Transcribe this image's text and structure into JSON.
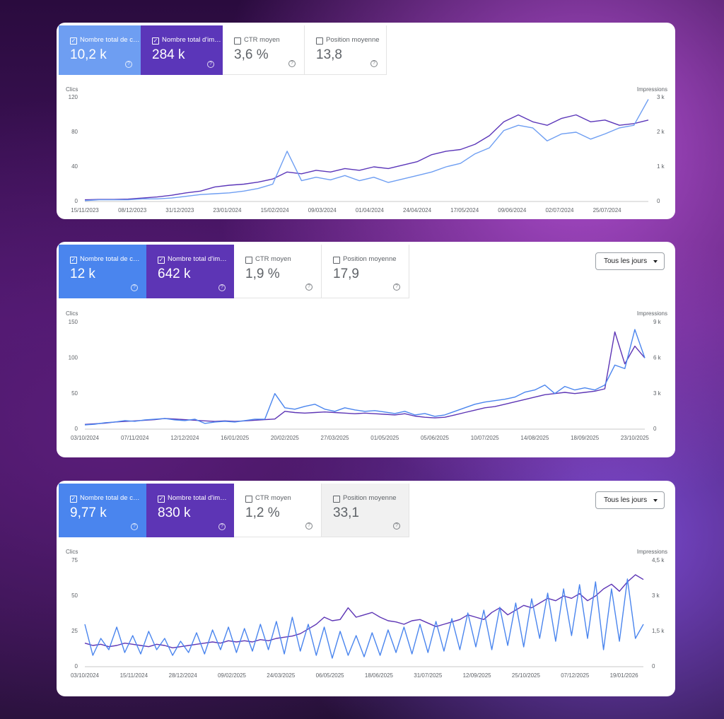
{
  "chart_data": [
    {
      "type": "line",
      "cards": [
        {
          "label": "Nombre total de c…",
          "value": "10,2 k",
          "checked": true
        },
        {
          "label": "Nombre total d'im…",
          "value": "284 k",
          "checked": true
        },
        {
          "label": "CTR moyen",
          "value": "3,6 %",
          "checked": false
        },
        {
          "label": "Position moyenne",
          "value": "13,8",
          "checked": false
        }
      ],
      "y_label": "Clics",
      "y2_label": "Impressions",
      "x": [
        "15/11/2023",
        "22/11/2023",
        "29/11/2023",
        "06/12/2023",
        "13/12/2023",
        "20/12/2023",
        "27/12/2023",
        "03/01/2024",
        "10/01/2024",
        "17/01/2024",
        "24/01/2024",
        "31/01/2024",
        "07/02/2024",
        "14/02/2024",
        "21/02/2024",
        "28/02/2024",
        "06/03/2024",
        "13/03/2024",
        "20/03/2024",
        "27/03/2024",
        "03/04/2024",
        "10/04/2024",
        "17/04/2024",
        "24/04/2024",
        "01/05/2024",
        "08/05/2024",
        "15/05/2024",
        "22/05/2024",
        "29/05/2024",
        "05/06/2024",
        "12/06/2024",
        "19/06/2024",
        "26/06/2024",
        "03/07/2024",
        "10/07/2024",
        "17/07/2024",
        "24/07/2024",
        "31/07/2024",
        "07/08/2024",
        "14/08/2024"
      ],
      "xlim": [
        "15/11/2023",
        "14/08/2024"
      ],
      "xticks": [
        "15/11/2023",
        "08/12/2023",
        "31/12/2023",
        "23/01/2024",
        "15/02/2024",
        "09/03/2024",
        "01/04/2024",
        "24/04/2024",
        "17/05/2024",
        "09/06/2024",
        "02/07/2024",
        "25/07/2024"
      ],
      "ylim": [
        0,
        120
      ],
      "yticks": [
        0,
        40,
        80,
        120
      ],
      "y2lim": [
        0,
        3000
      ],
      "y2ticks": [
        0,
        {
          "value": 1000,
          "label": "1 k"
        },
        {
          "value": 2000,
          "label": "2 k"
        },
        {
          "value": 3000,
          "label": "3 k"
        }
      ],
      "series": [
        {
          "color": "#6e9ef2",
          "values": [
            1,
            2,
            2,
            2,
            3,
            3,
            4,
            6,
            8,
            9,
            10,
            12,
            15,
            20,
            58,
            24,
            28,
            25,
            30,
            24,
            28,
            22,
            26,
            30,
            34,
            40,
            44,
            55,
            62,
            82,
            88,
            85,
            70,
            78,
            80,
            72,
            78,
            85,
            88,
            118
          ]
        },
        {
          "color": "#5b36b9",
          "axis": "y2",
          "values": [
            50,
            60,
            60,
            70,
            100,
            130,
            180,
            250,
            300,
            420,
            470,
            500,
            560,
            650,
            850,
            800,
            900,
            850,
            950,
            900,
            1000,
            950,
            1050,
            1150,
            1350,
            1450,
            1500,
            1650,
            1900,
            2300,
            2500,
            2300,
            2200,
            2400,
            2500,
            2300,
            2350,
            2200,
            2250,
            2350
          ]
        }
      ]
    },
    {
      "type": "line",
      "cards": [
        {
          "label": "Nombre total de c…",
          "value": "12 k",
          "checked": true
        },
        {
          "label": "Nombre total d'im…",
          "value": "642 k",
          "checked": true
        },
        {
          "label": "CTR moyen",
          "value": "1,9 %",
          "checked": false
        },
        {
          "label": "Position moyenne",
          "value": "17,9",
          "checked": false
        }
      ],
      "frequency": "Tous les jours",
      "y_label": "Clics",
      "y2_label": "Impressions",
      "x": [
        "03/10/2024",
        "10/10/2024",
        "17/10/2024",
        "24/10/2024",
        "31/10/2024",
        "07/11/2024",
        "14/11/2024",
        "21/11/2024",
        "28/11/2024",
        "05/12/2024",
        "12/12/2024",
        "19/12/2024",
        "26/12/2024",
        "02/01/2025",
        "09/01/2025",
        "16/01/2025",
        "23/01/2025",
        "30/01/2025",
        "06/02/2025",
        "13/02/2025",
        "20/02/2025",
        "27/02/2025",
        "06/03/2025",
        "13/03/2025",
        "20/03/2025",
        "27/03/2025",
        "03/04/2025",
        "10/04/2025",
        "17/04/2025",
        "24/04/2025",
        "01/05/2025",
        "08/05/2025",
        "15/05/2025",
        "22/05/2025",
        "29/05/2025",
        "05/06/2025",
        "12/06/2025",
        "19/06/2025",
        "26/06/2025",
        "03/07/2025",
        "10/07/2025",
        "17/07/2025",
        "24/07/2025",
        "31/07/2025",
        "07/08/2025",
        "14/08/2025",
        "21/08/2025",
        "28/08/2025",
        "04/09/2025",
        "11/09/2025",
        "18/09/2025",
        "25/09/2025",
        "02/10/2025",
        "09/10/2025",
        "16/10/2025",
        "23/10/2025",
        "30/10/2025"
      ],
      "xlim": [
        "03/10/2024",
        "30/10/2025"
      ],
      "xticks": [
        "03/10/2024",
        "07/11/2024",
        "12/12/2024",
        "16/01/2025",
        "20/02/2025",
        "27/03/2025",
        "01/05/2025",
        "05/06/2025",
        "10/07/2025",
        "14/08/2025",
        "18/09/2025",
        "23/10/2025"
      ],
      "ylim": [
        0,
        150
      ],
      "yticks": [
        0,
        50,
        100,
        150
      ],
      "y2lim": [
        0,
        9000
      ],
      "y2ticks": [
        0,
        {
          "value": 3000,
          "label": "3 k"
        },
        {
          "value": 6000,
          "label": "6 k"
        },
        {
          "value": 9000,
          "label": "9 k"
        }
      ],
      "series": [
        {
          "color": "#4a85ee",
          "values": [
            6,
            7,
            9,
            10,
            12,
            11,
            13,
            14,
            15,
            13,
            12,
            14,
            8,
            10,
            11,
            10,
            12,
            14,
            14,
            50,
            30,
            28,
            32,
            35,
            28,
            25,
            30,
            27,
            25,
            26,
            24,
            22,
            25,
            20,
            22,
            18,
            20,
            25,
            30,
            35,
            38,
            40,
            42,
            45,
            52,
            55,
            62,
            50,
            60,
            55,
            58,
            55,
            62,
            90,
            85,
            140,
            100
          ]
        },
        {
          "color": "#5d35b5",
          "axis": "y2",
          "values": [
            400,
            450,
            500,
            600,
            650,
            700,
            750,
            800,
            900,
            850,
            800,
            750,
            700,
            650,
            700,
            650,
            700,
            750,
            800,
            850,
            1500,
            1400,
            1350,
            1400,
            1450,
            1400,
            1350,
            1300,
            1350,
            1300,
            1250,
            1200,
            1300,
            1100,
            1000,
            950,
            1000,
            1200,
            1400,
            1600,
            1800,
            1900,
            2100,
            2300,
            2500,
            2700,
            2900,
            3000,
            3100,
            3000,
            3100,
            3200,
            3400,
            8200,
            5500,
            7000,
            6000
          ]
        }
      ]
    },
    {
      "type": "line",
      "cards": [
        {
          "label": "Nombre total de c…",
          "value": "9,77 k",
          "checked": true
        },
        {
          "label": "Nombre total d'im…",
          "value": "830 k",
          "checked": true
        },
        {
          "label": "CTR moyen",
          "value": "1,2 %",
          "checked": false
        },
        {
          "label": "Position moyenne",
          "value": "33,1",
          "checked": false
        }
      ],
      "frequency": "Tous les jours",
      "y_label": "Clics",
      "y2_label": "Impressions",
      "x": [
        "03/10/2024",
        "10/10/2024",
        "17/10/2024",
        "24/10/2024",
        "31/10/2024",
        "07/11/2024",
        "14/11/2024",
        "21/11/2024",
        "28/11/2024",
        "05/12/2024",
        "12/12/2024",
        "19/12/2024",
        "26/12/2024",
        "02/01/2025",
        "09/01/2025",
        "16/01/2025",
        "23/01/2025",
        "30/01/2025",
        "06/02/2025",
        "13/02/2025",
        "20/02/2025",
        "27/02/2025",
        "06/03/2025",
        "13/03/2025",
        "20/03/2025",
        "27/03/2025",
        "03/04/2025",
        "10/04/2025",
        "17/04/2025",
        "24/04/2025",
        "01/05/2025",
        "08/05/2025",
        "15/05/2025",
        "22/05/2025",
        "29/05/2025",
        "05/06/2025",
        "12/06/2025",
        "19/06/2025",
        "26/06/2025",
        "03/07/2025",
        "10/07/2025",
        "17/07/2025",
        "24/07/2025",
        "31/07/2025",
        "07/08/2025",
        "14/08/2025",
        "21/08/2025",
        "28/08/2025",
        "04/09/2025",
        "11/09/2025",
        "18/09/2025",
        "25/09/2025",
        "02/10/2025",
        "09/10/2025",
        "16/10/2025",
        "23/10/2025",
        "30/10/2025",
        "06/11/2025",
        "13/11/2025",
        "20/11/2025",
        "27/11/2025",
        "04/12/2025",
        "11/12/2025",
        "18/12/2025",
        "25/12/2025",
        "01/01/2026",
        "08/01/2026",
        "15/01/2026",
        "22/01/2026",
        "29/01/2026",
        "05/02/2026"
      ],
      "xlim": [
        "03/10/2024",
        "05/02/2026"
      ],
      "xticks": [
        "03/10/2024",
        "15/11/2024",
        "28/12/2024",
        "09/02/2025",
        "24/03/2025",
        "06/05/2025",
        "18/06/2025",
        "31/07/2025",
        "12/09/2025",
        "25/10/2025",
        "07/12/2025",
        "19/01/2026"
      ],
      "ylim": [
        0,
        75
      ],
      "yticks": [
        0,
        25,
        50,
        75
      ],
      "y2lim": [
        0,
        4500
      ],
      "y2ticks": [
        0,
        {
          "value": 1500,
          "label": "1,5 k"
        },
        {
          "value": 3000,
          "label": "3 k"
        },
        {
          "value": 4500,
          "label": "4,5 k"
        }
      ],
      "series": [
        {
          "color": "#4a85ee",
          "values": [
            30,
            8,
            20,
            12,
            28,
            10,
            22,
            9,
            25,
            12,
            20,
            8,
            18,
            10,
            24,
            9,
            26,
            12,
            28,
            10,
            27,
            11,
            30,
            12,
            32,
            9,
            35,
            11,
            30,
            8,
            28,
            6,
            25,
            8,
            22,
            7,
            24,
            8,
            26,
            10,
            28,
            9,
            30,
            10,
            32,
            11,
            34,
            12,
            38,
            14,
            40,
            12,
            42,
            15,
            45,
            14,
            48,
            20,
            52,
            18,
            55,
            22,
            58,
            20,
            60,
            12,
            55,
            18,
            62,
            20,
            30
          ]
        },
        {
          "color": "#5d35b5",
          "axis": "y2",
          "values": [
            1000,
            900,
            950,
            850,
            900,
            1000,
            950,
            900,
            850,
            950,
            900,
            800,
            850,
            900,
            950,
            1000,
            1050,
            1000,
            1100,
            1050,
            1100,
            1050,
            1150,
            1100,
            1200,
            1250,
            1300,
            1400,
            1600,
            1800,
            2100,
            1950,
            2000,
            2500,
            2100,
            2200,
            2300,
            2100,
            1950,
            1900,
            1800,
            1950,
            2000,
            1850,
            1700,
            1800,
            1900,
            2000,
            2200,
            2100,
            2000,
            2300,
            2500,
            2200,
            2400,
            2600,
            2500,
            2700,
            2900,
            2800,
            3000,
            2900,
            3100,
            2800,
            3000,
            3300,
            3500,
            3200,
            3600,
            3900,
            3700
          ]
        }
      ]
    }
  ]
}
